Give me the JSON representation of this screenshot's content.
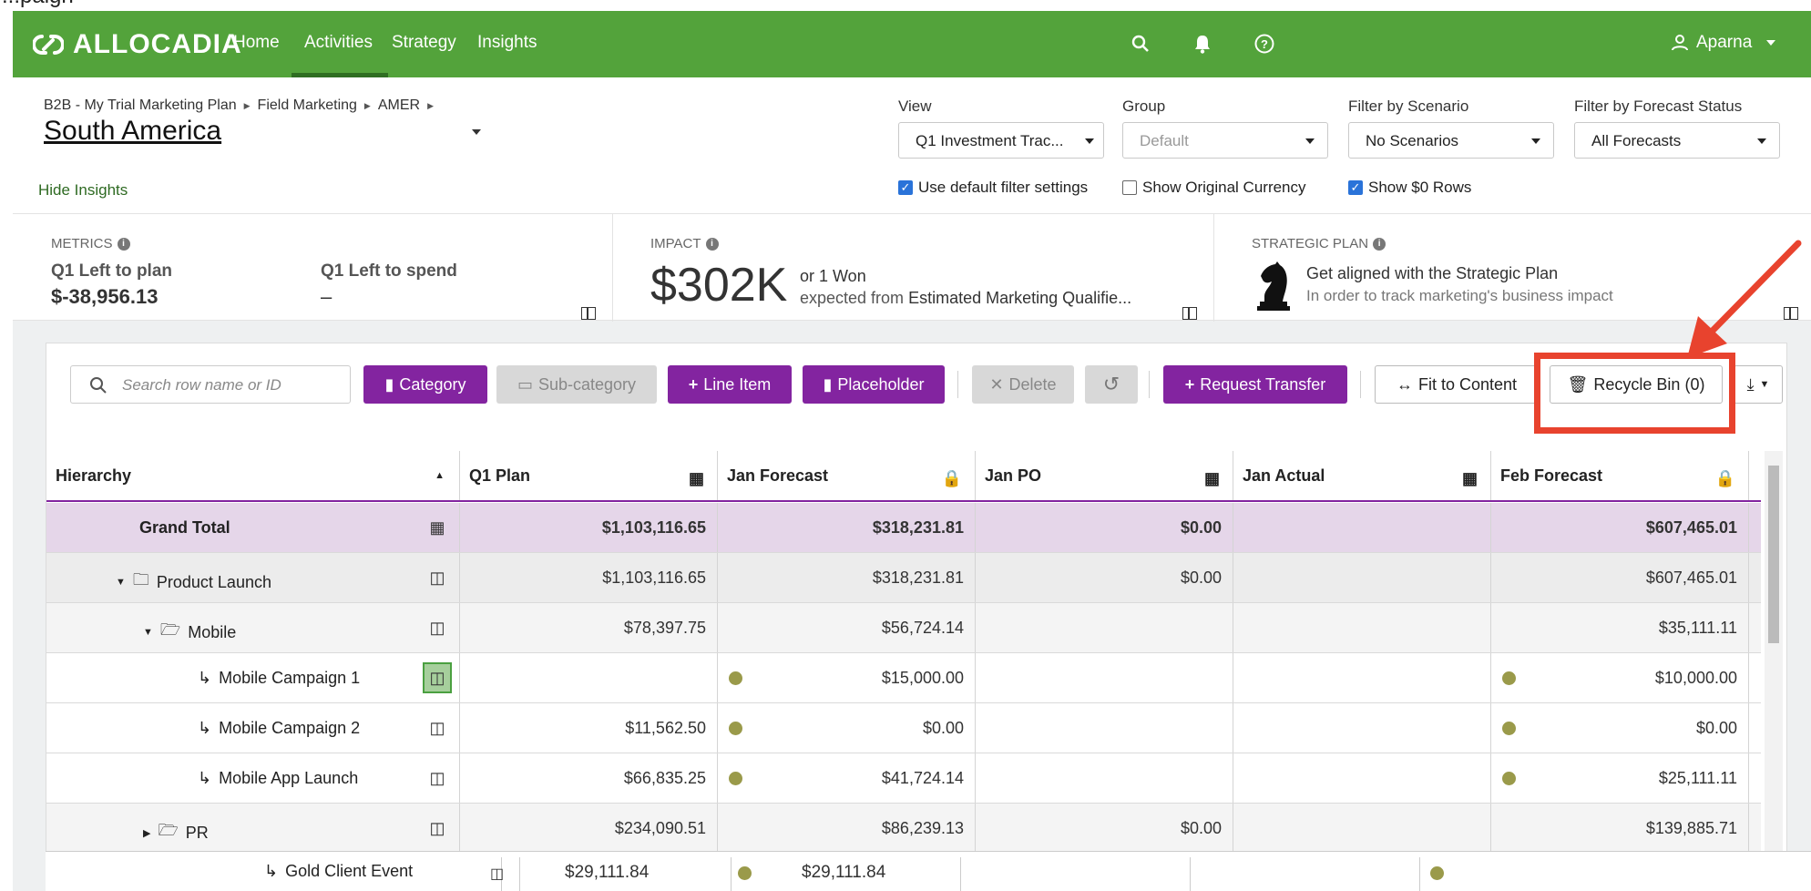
{
  "top_strip": {
    "text": "...paign"
  },
  "nav": {
    "logo": "ALLOCADIA",
    "links": [
      "Home",
      "Activities",
      "Strategy",
      "Insights"
    ],
    "active": "Activities",
    "user": "Aparna"
  },
  "header": {
    "breadcrumbs": [
      "B2B - My Trial Marketing Plan",
      "Field Marketing",
      "AMER"
    ],
    "title": "South America",
    "hide_insights": "Hide Insights",
    "filters": {
      "view": {
        "label": "View",
        "value": "Q1 Investment Trac..."
      },
      "group": {
        "label": "Group",
        "value": "Default"
      },
      "scenario": {
        "label": "Filter by Scenario",
        "value": "No Scenarios"
      },
      "forecast": {
        "label": "Filter by Forecast Status",
        "value": "All Forecasts"
      }
    },
    "checkboxes": {
      "default_filter": {
        "label": "Use default filter settings",
        "checked": true
      },
      "original_currency": {
        "label": "Show Original Currency",
        "checked": false
      },
      "zero_rows": {
        "label": "Show $0 Rows",
        "checked": true
      }
    }
  },
  "metrics": {
    "head": "METRICS",
    "left_plan_label": "Q1 Left to plan",
    "left_plan_value": "$-38,956.13",
    "left_spend_label": "Q1 Left to spend",
    "left_spend_value": "–"
  },
  "impact": {
    "head": "IMPACT",
    "value": "$302K",
    "line1": "or 1 Won",
    "line2_prefix": "expected from",
    "line2_metric": "Estimated Marketing Qualifie..."
  },
  "strategic": {
    "head": "STRATEGIC PLAN",
    "title": "Get aligned with the Strategic Plan",
    "subtitle": "In order to track marketing's business impact"
  },
  "toolbar": {
    "search_placeholder": "Search row name or ID",
    "category": "Category",
    "subcategory": "Sub-category",
    "line_item": "Line Item",
    "placeholder": "Placeholder",
    "delete": "Delete",
    "request_transfer": "Request Transfer",
    "fit": "Fit to Content",
    "recycle": "Recycle Bin (0)"
  },
  "grid": {
    "columns": [
      "Hierarchy",
      "Q1 Plan",
      "Jan Forecast",
      "Jan PO",
      "Jan Actual",
      "Feb Forecast"
    ],
    "rows": [
      {
        "name": "Grand Total",
        "q1": "$1,103,116.65",
        "janf": "$318,231.81",
        "janpo": "$0.00",
        "jana": "",
        "febf": "$607,465.01"
      },
      {
        "name": "Product Launch",
        "q1": "$1,103,116.65",
        "janf": "$318,231.81",
        "janpo": "$0.00",
        "jana": "",
        "febf": "$607,465.01"
      },
      {
        "name": "Mobile",
        "q1": "$78,397.75",
        "janf": "$56,724.14",
        "janpo": "",
        "jana": "",
        "febf": "$35,111.11"
      },
      {
        "name": "Mobile Campaign 1",
        "q1": "",
        "janf": "$15,000.00",
        "janpo": "",
        "jana": "",
        "febf": "$10,000.00"
      },
      {
        "name": "Mobile Campaign 2",
        "q1": "$11,562.50",
        "janf": "$0.00",
        "janpo": "",
        "jana": "",
        "febf": "$0.00"
      },
      {
        "name": "Mobile App Launch",
        "q1": "$66,835.25",
        "janf": "$41,724.14",
        "janpo": "",
        "jana": "",
        "febf": "$25,111.11"
      },
      {
        "name": "PR",
        "q1": "$234,090.51",
        "janf": "$86,239.13",
        "janpo": "$0.00",
        "jana": "",
        "febf": "$139,885.71"
      }
    ],
    "last_row": {
      "name": "Gold Client Event",
      "q1": "$29,111.84",
      "janf": "$29,111.84"
    }
  },
  "colors": {
    "nav_green": "#53a33b",
    "purple": "#8324a0",
    "annotation_red": "#e8432e"
  }
}
